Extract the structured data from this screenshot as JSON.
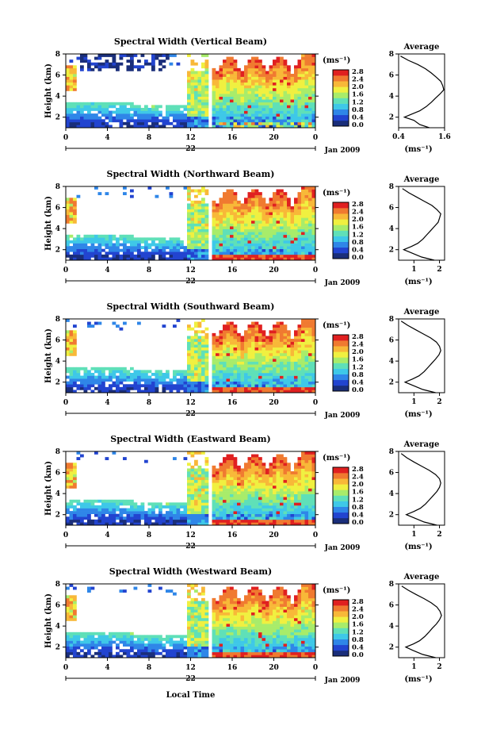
{
  "figure": {
    "xlabel": "Local Time",
    "date_label": "Jan 2009",
    "day_label": "22",
    "colorbar_unit": "(ms⁻¹)",
    "colorbar_ticks": [
      "0.0",
      "0.4",
      "0.8",
      "1.2",
      "1.6",
      "2.0",
      "2.4",
      "2.8"
    ],
    "colorbar_colors": [
      "#1a2e7a",
      "#2244d0",
      "#2f86e8",
      "#3ec8e8",
      "#5fe0b8",
      "#a8ec6a",
      "#f0f040",
      "#f8b838",
      "#f07a30",
      "#e02020"
    ],
    "average_title": "Average",
    "average_xunit": "(ms⁻¹)"
  },
  "chart_data": [
    {
      "type": "heatmap",
      "title": "Spectral Width (Vertical Beam)",
      "ylabel": "Height (km)",
      "x_ticks": [
        "0",
        "4",
        "8",
        "12",
        "16",
        "20",
        "0"
      ],
      "y_ticks": [
        "2",
        "4",
        "6",
        "8"
      ],
      "xlim": [
        0,
        24
      ],
      "ylim": [
        1,
        8
      ],
      "clim": [
        0.0,
        2.8
      ],
      "data_gap_local_time": 14,
      "average_profile": {
        "x_ticks": [
          "0.4",
          "1.6"
        ],
        "xlim": [
          0.4,
          1.6
        ],
        "ylim": [
          1,
          8
        ],
        "height_km": [
          1.0,
          1.3,
          1.7,
          2.0,
          2.3,
          2.6,
          3.0,
          3.4,
          3.8,
          4.2,
          4.6,
          5.0,
          5.4,
          5.8,
          6.2,
          6.6,
          7.0,
          7.4,
          7.8
        ],
        "width": [
          1.2,
          0.95,
          0.8,
          0.55,
          0.75,
          0.95,
          1.12,
          1.25,
          1.36,
          1.48,
          1.58,
          1.55,
          1.5,
          1.38,
          1.25,
          1.1,
          0.9,
          0.65,
          0.45
        ]
      }
    },
    {
      "type": "heatmap",
      "title": "Spectral Width (Northward Beam)",
      "ylabel": "Height (km)",
      "x_ticks": [
        "0",
        "4",
        "8",
        "12",
        "16",
        "20",
        "0"
      ],
      "y_ticks": [
        "2",
        "4",
        "6",
        "8"
      ],
      "xlim": [
        0,
        24
      ],
      "ylim": [
        1,
        8
      ],
      "clim": [
        0.0,
        2.8
      ],
      "data_gap_local_time": 14,
      "average_profile": {
        "x_ticks": [
          "1",
          "2"
        ],
        "xlim": [
          0.4,
          2.2
        ],
        "ylim": [
          1,
          8
        ],
        "height_km": [
          1.0,
          1.3,
          1.7,
          2.0,
          2.3,
          2.6,
          3.0,
          3.4,
          3.8,
          4.2,
          4.6,
          5.0,
          5.4,
          5.8,
          6.2,
          6.6,
          7.0,
          7.4,
          7.8
        ],
        "width": [
          1.8,
          1.3,
          0.9,
          0.6,
          0.9,
          1.15,
          1.35,
          1.5,
          1.65,
          1.8,
          1.95,
          2.0,
          2.05,
          1.9,
          1.7,
          1.4,
          1.1,
          0.8,
          0.55
        ]
      }
    },
    {
      "type": "heatmap",
      "title": "Spectral Width (Southward Beam)",
      "ylabel": "Height (km)",
      "x_ticks": [
        "0",
        "4",
        "8",
        "12",
        "16",
        "20",
        "0"
      ],
      "y_ticks": [
        "2",
        "4",
        "6",
        "8"
      ],
      "xlim": [
        0,
        24
      ],
      "ylim": [
        1,
        8
      ],
      "clim": [
        0.0,
        2.8
      ],
      "data_gap_local_time": 14,
      "average_profile": {
        "x_ticks": [
          "1",
          "2"
        ],
        "xlim": [
          0.4,
          2.2
        ],
        "ylim": [
          1,
          8
        ],
        "height_km": [
          1.0,
          1.3,
          1.7,
          2.0,
          2.3,
          2.6,
          3.0,
          3.4,
          3.8,
          4.2,
          4.6,
          5.0,
          5.4,
          5.8,
          6.2,
          6.6,
          7.0,
          7.4,
          7.8
        ],
        "width": [
          1.85,
          1.35,
          0.95,
          0.65,
          0.95,
          1.2,
          1.4,
          1.55,
          1.7,
          1.85,
          1.98,
          2.05,
          2.0,
          1.88,
          1.65,
          1.35,
          1.05,
          0.75,
          0.5
        ]
      }
    },
    {
      "type": "heatmap",
      "title": "Spectral Width (Eastward Beam)",
      "ylabel": "Height (km)",
      "x_ticks": [
        "0",
        "4",
        "8",
        "12",
        "16",
        "20",
        "0"
      ],
      "y_ticks": [
        "2",
        "4",
        "6",
        "8"
      ],
      "xlim": [
        0,
        24
      ],
      "ylim": [
        1,
        8
      ],
      "clim": [
        0.0,
        2.8
      ],
      "data_gap_local_time": 14,
      "average_profile": {
        "x_ticks": [
          "1",
          "2"
        ],
        "xlim": [
          0.4,
          2.2
        ],
        "ylim": [
          1,
          8
        ],
        "height_km": [
          1.0,
          1.3,
          1.7,
          2.0,
          2.3,
          2.6,
          3.0,
          3.4,
          3.8,
          4.2,
          4.6,
          5.0,
          5.4,
          5.8,
          6.2,
          6.6,
          7.0,
          7.4,
          7.8
        ],
        "width": [
          1.9,
          1.4,
          1.0,
          0.7,
          1.0,
          1.25,
          1.45,
          1.6,
          1.75,
          1.9,
          2.0,
          2.05,
          2.0,
          1.85,
          1.6,
          1.3,
          1.0,
          0.72,
          0.5
        ]
      }
    },
    {
      "type": "heatmap",
      "title": "Spectral Width (Westward Beam)",
      "ylabel": "Height (km)",
      "x_ticks": [
        "0",
        "4",
        "8",
        "12",
        "16",
        "20",
        "0"
      ],
      "y_ticks": [
        "2",
        "4",
        "6",
        "8"
      ],
      "xlim": [
        0,
        24
      ],
      "ylim": [
        1,
        8
      ],
      "clim": [
        0.0,
        2.8
      ],
      "data_gap_local_time": 14,
      "average_profile": {
        "x_ticks": [
          "1",
          "2"
        ],
        "xlim": [
          0.4,
          2.2
        ],
        "ylim": [
          1,
          8
        ],
        "height_km": [
          1.0,
          1.3,
          1.7,
          2.0,
          2.3,
          2.6,
          3.0,
          3.4,
          3.8,
          4.2,
          4.6,
          5.0,
          5.4,
          5.8,
          6.2,
          6.6,
          7.0,
          7.4,
          7.8
        ],
        "width": [
          1.85,
          1.35,
          0.95,
          0.68,
          0.98,
          1.22,
          1.42,
          1.58,
          1.72,
          1.88,
          2.0,
          2.08,
          2.02,
          1.9,
          1.68,
          1.4,
          1.08,
          0.78,
          0.52
        ]
      }
    }
  ]
}
